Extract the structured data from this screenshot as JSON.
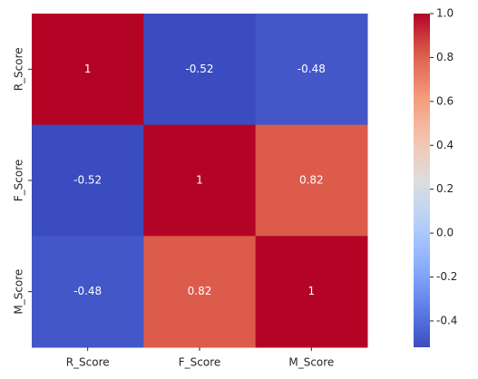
{
  "chart_data": {
    "type": "heatmap",
    "x_categories": [
      "R_Score",
      "F_Score",
      "M_Score"
    ],
    "y_categories": [
      "R_Score",
      "F_Score",
      "M_Score"
    ],
    "values": [
      [
        1,
        -0.52,
        -0.48
      ],
      [
        -0.52,
        1,
        0.82
      ],
      [
        -0.48,
        0.82,
        1
      ]
    ],
    "colormap": "coolwarm",
    "zlim": [
      -0.52,
      1
    ],
    "colorbar_ticks": [
      {
        "value": 1,
        "label": "1.0"
      },
      0.8,
      0.6,
      0.4,
      0.2,
      {
        "value": 0,
        "label": "0.0"
      },
      -0.2,
      -0.4
    ]
  }
}
